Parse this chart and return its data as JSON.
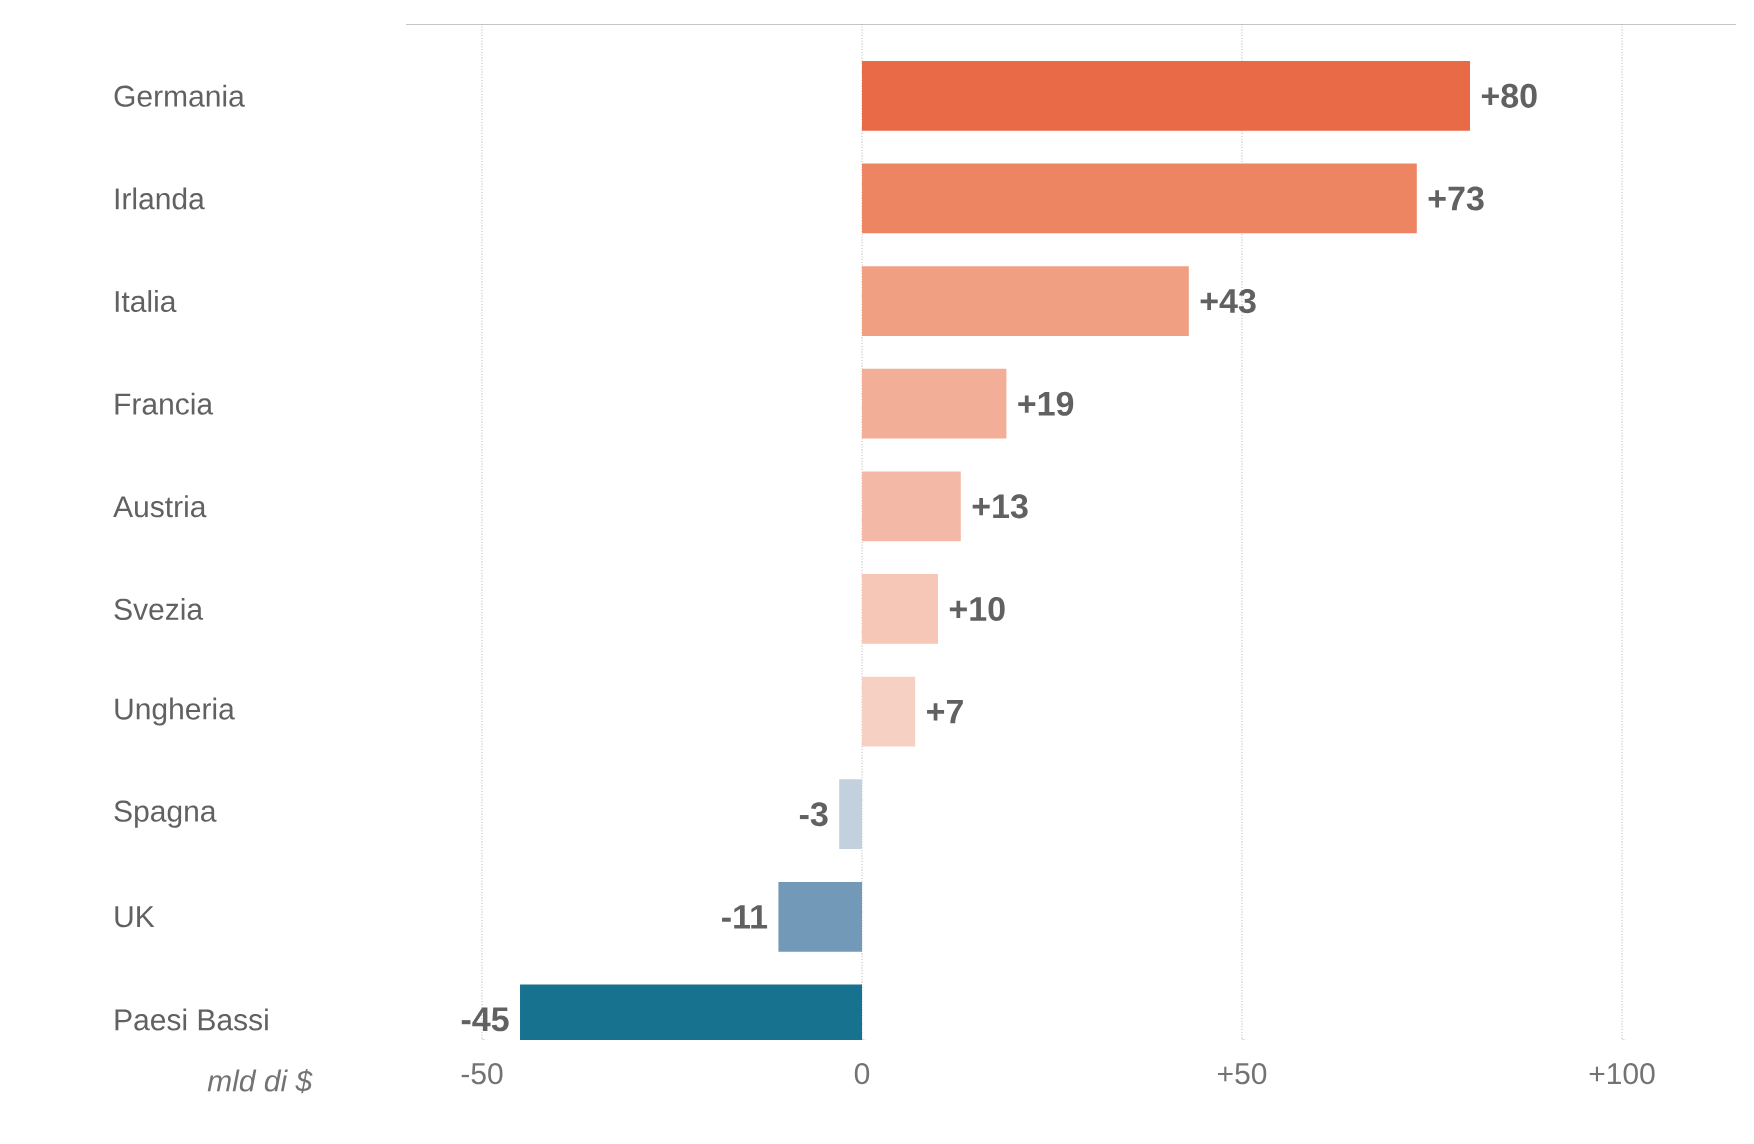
{
  "chart_data": {
    "type": "bar",
    "orientation": "horizontal",
    "categories": [
      "Germania",
      "Irlanda",
      "Italia",
      "Francia",
      "Austria",
      "Svezia",
      "Ungheria",
      "Spagna",
      "UK",
      "Paesi Bassi"
    ],
    "values": [
      80,
      73,
      43,
      19,
      13,
      10,
      7,
      -3,
      -11,
      -45
    ],
    "value_labels": [
      "+80",
      "+73",
      "+43",
      "+19",
      "+13",
      "+10",
      "+7",
      "-3",
      "-11",
      "-45"
    ],
    "colors": [
      "#e86a47",
      "#ed8563",
      "#f09f82",
      "#f3ae97",
      "#f4b9a6",
      "#f6c6b7",
      "#f7d0c4",
      "#c2d1dd",
      "#7299b7",
      "#17728f"
    ],
    "xlabel": "mld di $",
    "xlim": [
      -60,
      115
    ],
    "xticks": [
      {
        "value": -50,
        "label": "-50"
      },
      0,
      {
        "value": 50,
        "label": "+50"
      },
      {
        "value": 100,
        "label": "+100"
      }
    ],
    "grid": "x"
  }
}
